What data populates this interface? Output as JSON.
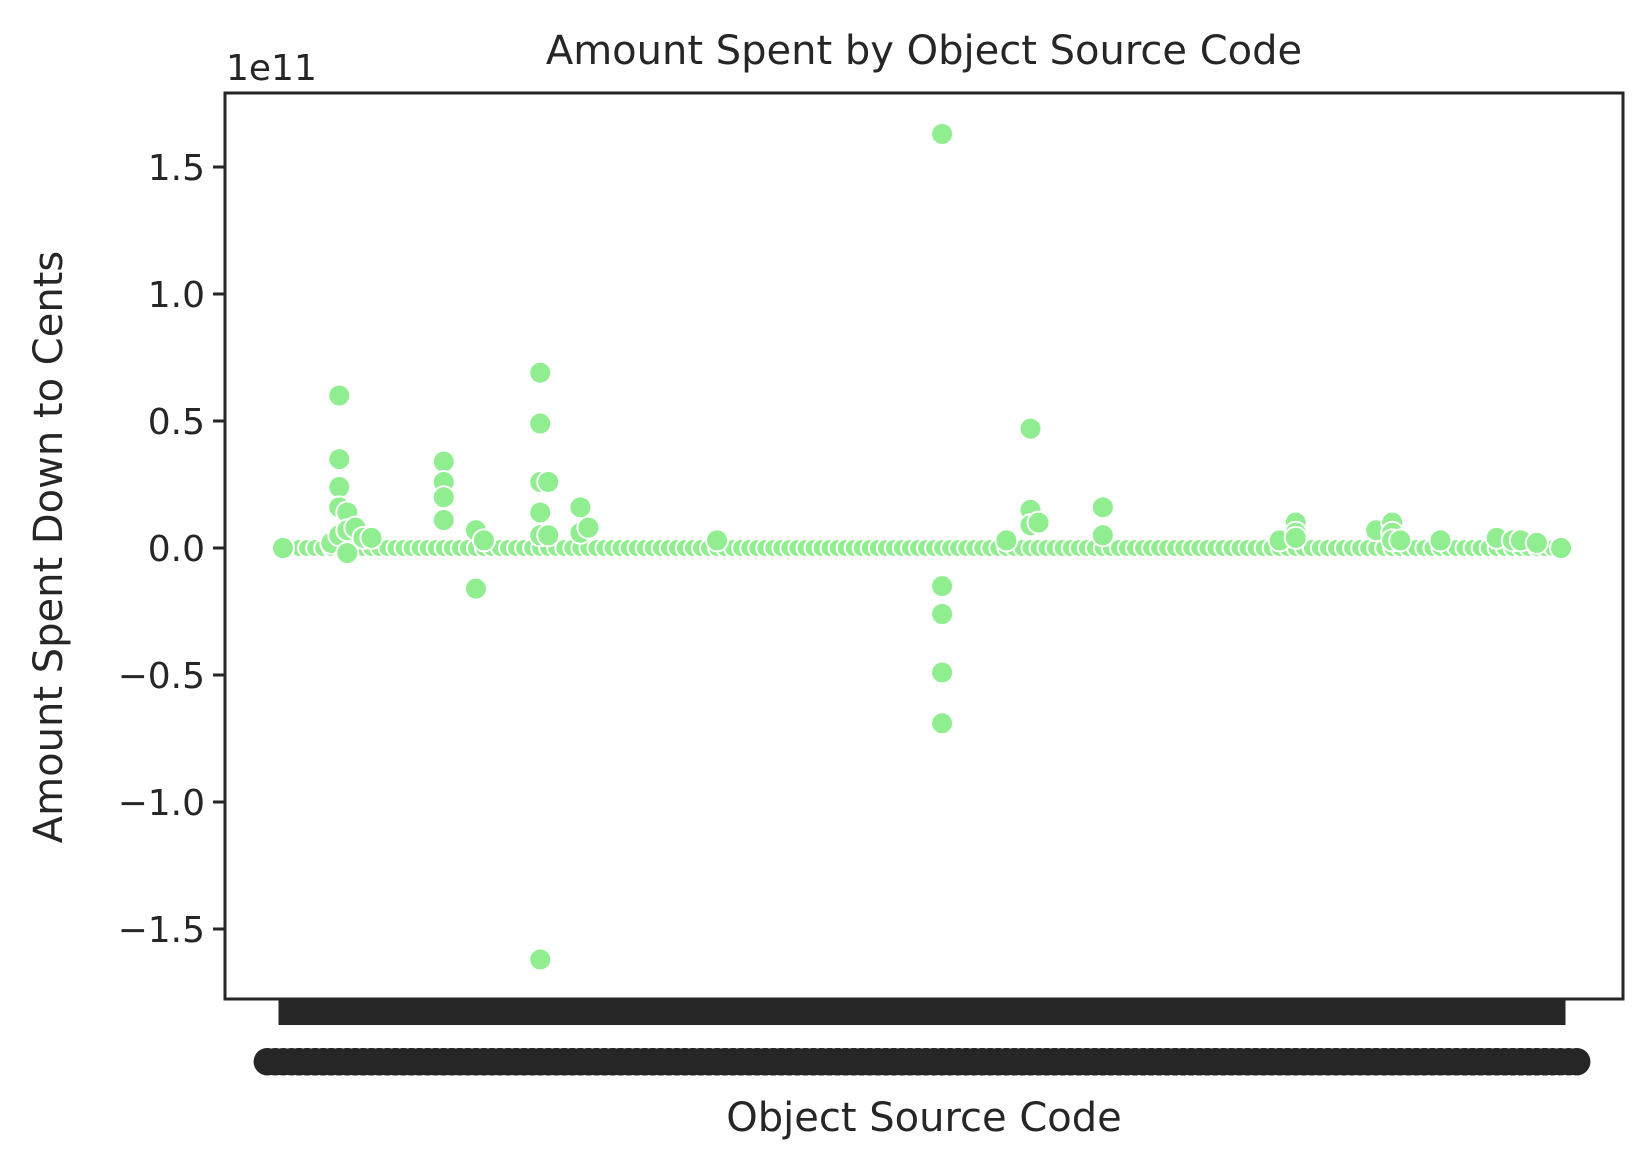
{
  "chart_data": {
    "type": "scatter",
    "title": "Amount Spent by Object Source Code",
    "xlabel": "Object Source Code",
    "ylabel": "Amount Spent Down to Cents",
    "y_offset_label": "1e11",
    "y_scale_exponent": 11,
    "ylim": [
      -1.8,
      1.8
    ],
    "yticks": [
      -1.5,
      -1.0,
      -0.5,
      0.0,
      0.5,
      1.0,
      1.5
    ],
    "ytick_labels": [
      "−1.5",
      "−1.0",
      "−0.5",
      "0.0",
      "0.5",
      "1.0",
      "1.5"
    ],
    "x_category_count": 160,
    "grid": false,
    "marker_color": "#90ee90",
    "marker_edge_color": "#ffffff",
    "series": [
      {
        "points": [
          [
            0,
            0.0
          ],
          [
            6,
            0.02
          ],
          [
            7,
            0.05
          ],
          [
            7,
            0.35
          ],
          [
            7,
            0.6
          ],
          [
            7,
            0.24
          ],
          [
            7,
            0.16
          ],
          [
            8,
            0.14
          ],
          [
            8,
            0.07
          ],
          [
            8,
            -0.02
          ],
          [
            9,
            0.08
          ],
          [
            10,
            0.04
          ],
          [
            11,
            0.04
          ],
          [
            20,
            0.34
          ],
          [
            20,
            0.26
          ],
          [
            20,
            0.2
          ],
          [
            20,
            0.11
          ],
          [
            24,
            0.07
          ],
          [
            24,
            -0.16
          ],
          [
            25,
            0.03
          ],
          [
            32,
            0.69
          ],
          [
            32,
            0.49
          ],
          [
            32,
            0.26
          ],
          [
            32,
            0.14
          ],
          [
            32,
            -1.62
          ],
          [
            32,
            0.05
          ],
          [
            33,
            0.26
          ],
          [
            33,
            0.05
          ],
          [
            37,
            0.16
          ],
          [
            37,
            0.06
          ],
          [
            38,
            0.08
          ],
          [
            54,
            0.03
          ],
          [
            82,
            1.63
          ],
          [
            82,
            -0.15
          ],
          [
            82,
            -0.26
          ],
          [
            82,
            -0.49
          ],
          [
            82,
            -0.69
          ],
          [
            90,
            0.03
          ],
          [
            93,
            0.47
          ],
          [
            93,
            0.15
          ],
          [
            93,
            0.09
          ],
          [
            94,
            0.1
          ],
          [
            102,
            0.16
          ],
          [
            102,
            0.05
          ],
          [
            124,
            0.03
          ],
          [
            126,
            0.1
          ],
          [
            126,
            0.06
          ],
          [
            126,
            0.04
          ],
          [
            136,
            0.07
          ],
          [
            138,
            0.1
          ],
          [
            138,
            0.06
          ],
          [
            138,
            0.03
          ],
          [
            139,
            0.03
          ],
          [
            144,
            0.03
          ],
          [
            151,
            0.04
          ],
          [
            153,
            0.03
          ],
          [
            154,
            0.03
          ],
          [
            156,
            0.02
          ],
          [
            159,
            0.0
          ]
        ]
      }
    ]
  }
}
